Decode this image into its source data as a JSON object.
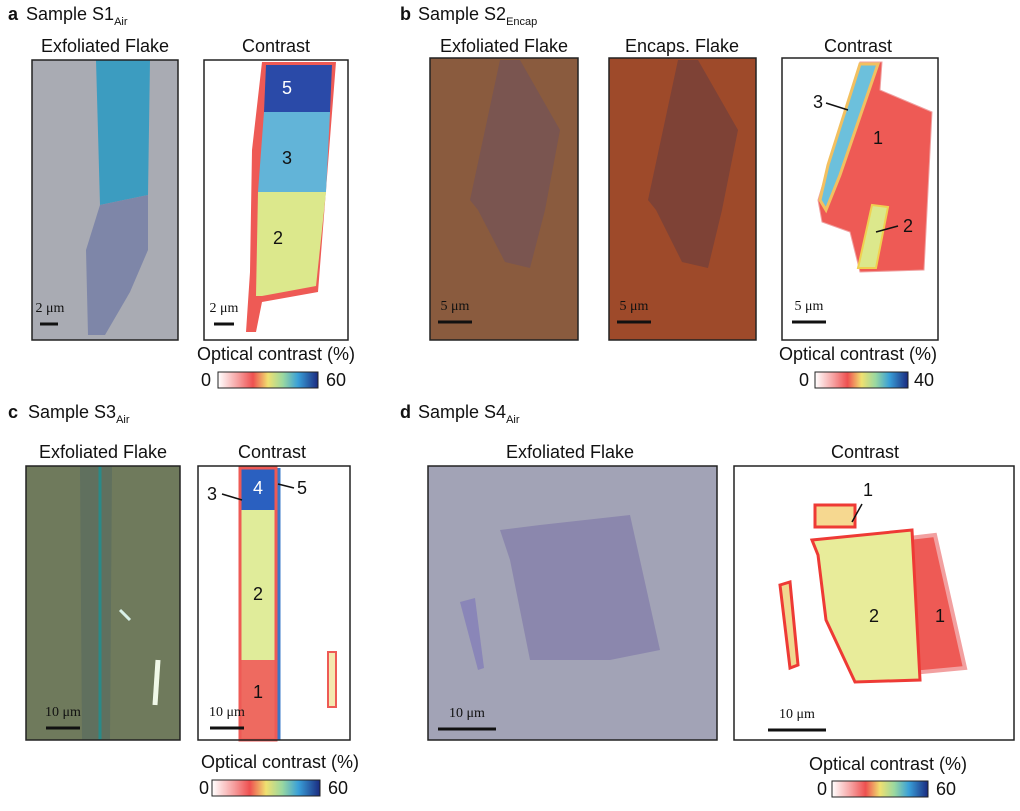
{
  "panels": [
    {
      "letter": "a",
      "sample": "Sample S1",
      "subscript": "Air",
      "images": [
        {
          "title": "Exfoliated Flake",
          "scale_bar": "2 μm"
        },
        {
          "title": "Contrast",
          "scale_bar": "2 μm",
          "regions": [
            "5",
            "3",
            "2"
          ]
        }
      ],
      "colorbar": {
        "label": "Optical contrast (%)",
        "min": 0,
        "max": 60
      }
    },
    {
      "letter": "b",
      "sample": "Sample S2",
      "subscript": "Encap",
      "images": [
        {
          "title": "Exfoliated Flake",
          "scale_bar": "5 μm"
        },
        {
          "title": "Encaps. Flake",
          "scale_bar": "5 μm"
        },
        {
          "title": "Contrast",
          "scale_bar": "5 μm",
          "regions": [
            "3",
            "1",
            "2"
          ]
        }
      ],
      "colorbar": {
        "label": "Optical contrast (%)",
        "min": 0,
        "max": 40
      }
    },
    {
      "letter": "c",
      "sample": "Sample S3",
      "subscript": "Air",
      "images": [
        {
          "title": "Exfoliated Flake",
          "scale_bar": "10 μm"
        },
        {
          "title": "Contrast",
          "scale_bar": "10 μm",
          "regions": [
            "4",
            "3",
            "5",
            "2",
            "1"
          ]
        }
      ],
      "colorbar": {
        "label": "Optical contrast (%)",
        "min": 0,
        "max": 60
      }
    },
    {
      "letter": "d",
      "sample": "Sample S4",
      "subscript": "Air",
      "images": [
        {
          "title": "Exfoliated Flake",
          "scale_bar": "10 μm"
        },
        {
          "title": "Contrast",
          "scale_bar": "10 μm",
          "regions": [
            "1",
            "2",
            "1"
          ]
        }
      ],
      "colorbar": {
        "label": "Optical contrast (%)",
        "min": 0,
        "max": 60
      }
    }
  ]
}
